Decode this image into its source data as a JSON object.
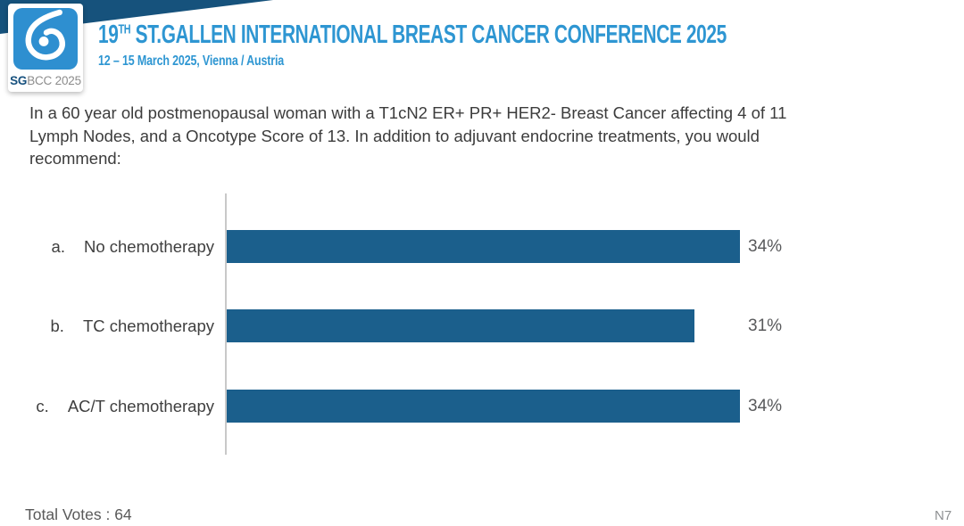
{
  "header": {
    "logo": {
      "sg": "SG",
      "rest": "BCC 2025"
    },
    "title_number": "19",
    "title_sup": "TH",
    "title_main": " ST.GALLEN INTERNATIONAL BREAST CANCER CONFERENCE 2025",
    "subtitle": "12 – 15 March 2025, Vienna / Austria",
    "accent_dark_blue": "#16527C",
    "accent_light_blue": "#2E8FD0",
    "title_blue": "#2E96D2"
  },
  "question": {
    "lines": [
      "In a 60 year old postmenopausal woman with a T1cN2 ER+ PR+ HER2- Breast Cancer affecting 4 of 11",
      "Lymph Nodes, and a Oncotype Score of 13. In addition to adjuvant endocrine treatments, you would",
      "recommend:"
    ]
  },
  "chart_data": {
    "type": "bar",
    "orientation": "horizontal",
    "option_letters": [
      "a.",
      "b.",
      "c."
    ],
    "categories": [
      "No chemotherapy",
      "TC chemotherapy",
      "AC/T chemotherapy"
    ],
    "values": [
      34,
      31,
      34
    ],
    "value_labels": [
      "34%",
      "31%",
      "34%"
    ],
    "unit": "%",
    "xlim": [
      0,
      40
    ],
    "gridlines": false,
    "bar_color": "#1B5F8C",
    "axis_color": "#C8C8C8",
    "total_votes": 64
  },
  "footer": {
    "total_votes_label": "Total Votes : 64",
    "slide_code": "N7"
  }
}
